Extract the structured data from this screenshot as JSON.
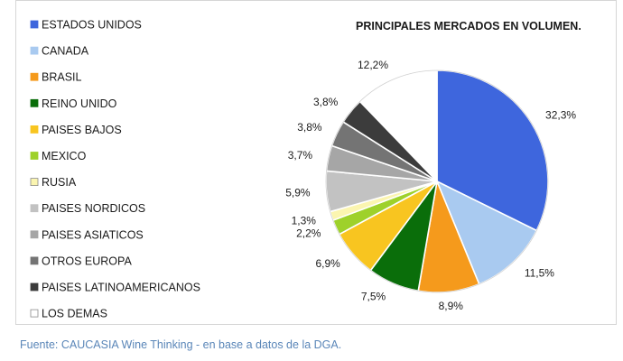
{
  "chart_data": {
    "type": "pie",
    "title": "PRINCIPALES MERCADOS EN VOLUMEN.",
    "legend_position": "left",
    "slices": [
      {
        "label": "ESTADOS UNIDOS",
        "value": 32.3,
        "display": "32,3%",
        "color": "#3e66dd"
      },
      {
        "label": "CANADA",
        "value": 11.5,
        "display": "11,5%",
        "color": "#a9caf0"
      },
      {
        "label": "BRASIL",
        "value": 8.9,
        "display": "8,9%",
        "color": "#f59a1c"
      },
      {
        "label": "REINO UNIDO",
        "value": 7.5,
        "display": "7,5%",
        "color": "#0a6e0a"
      },
      {
        "label": "PAISES BAJOS",
        "value": 6.9,
        "display": "6,9%",
        "color": "#f8c520"
      },
      {
        "label": "MEXICO",
        "value": 2.2,
        "display": "2,2%",
        "color": "#9ed12b"
      },
      {
        "label": "RUSIA",
        "value": 1.3,
        "display": "1,3%",
        "color": "#fbf5b0"
      },
      {
        "label": "PAISES NORDICOS",
        "value": 5.9,
        "display": "5,9%",
        "color": "#c2c2c2"
      },
      {
        "label": "PAISES ASIATICOS",
        "value": 3.7,
        "display": "3,7%",
        "color": "#a6a6a6"
      },
      {
        "label": "OTROS EUROPA",
        "value": 3.8,
        "display": "3,8%",
        "color": "#747474"
      },
      {
        "label": "PAISES LATINOAMERICANOS",
        "value": 3.8,
        "display": "3,8%",
        "color": "#3c3c3c"
      },
      {
        "label": "LOS DEMAS",
        "value": 12.2,
        "display": "12,2%",
        "color": "#ffffff"
      }
    ]
  },
  "footer": {
    "source": "Fuente: CAUCASIA Wine Thinking - en base a datos de la DGA."
  }
}
